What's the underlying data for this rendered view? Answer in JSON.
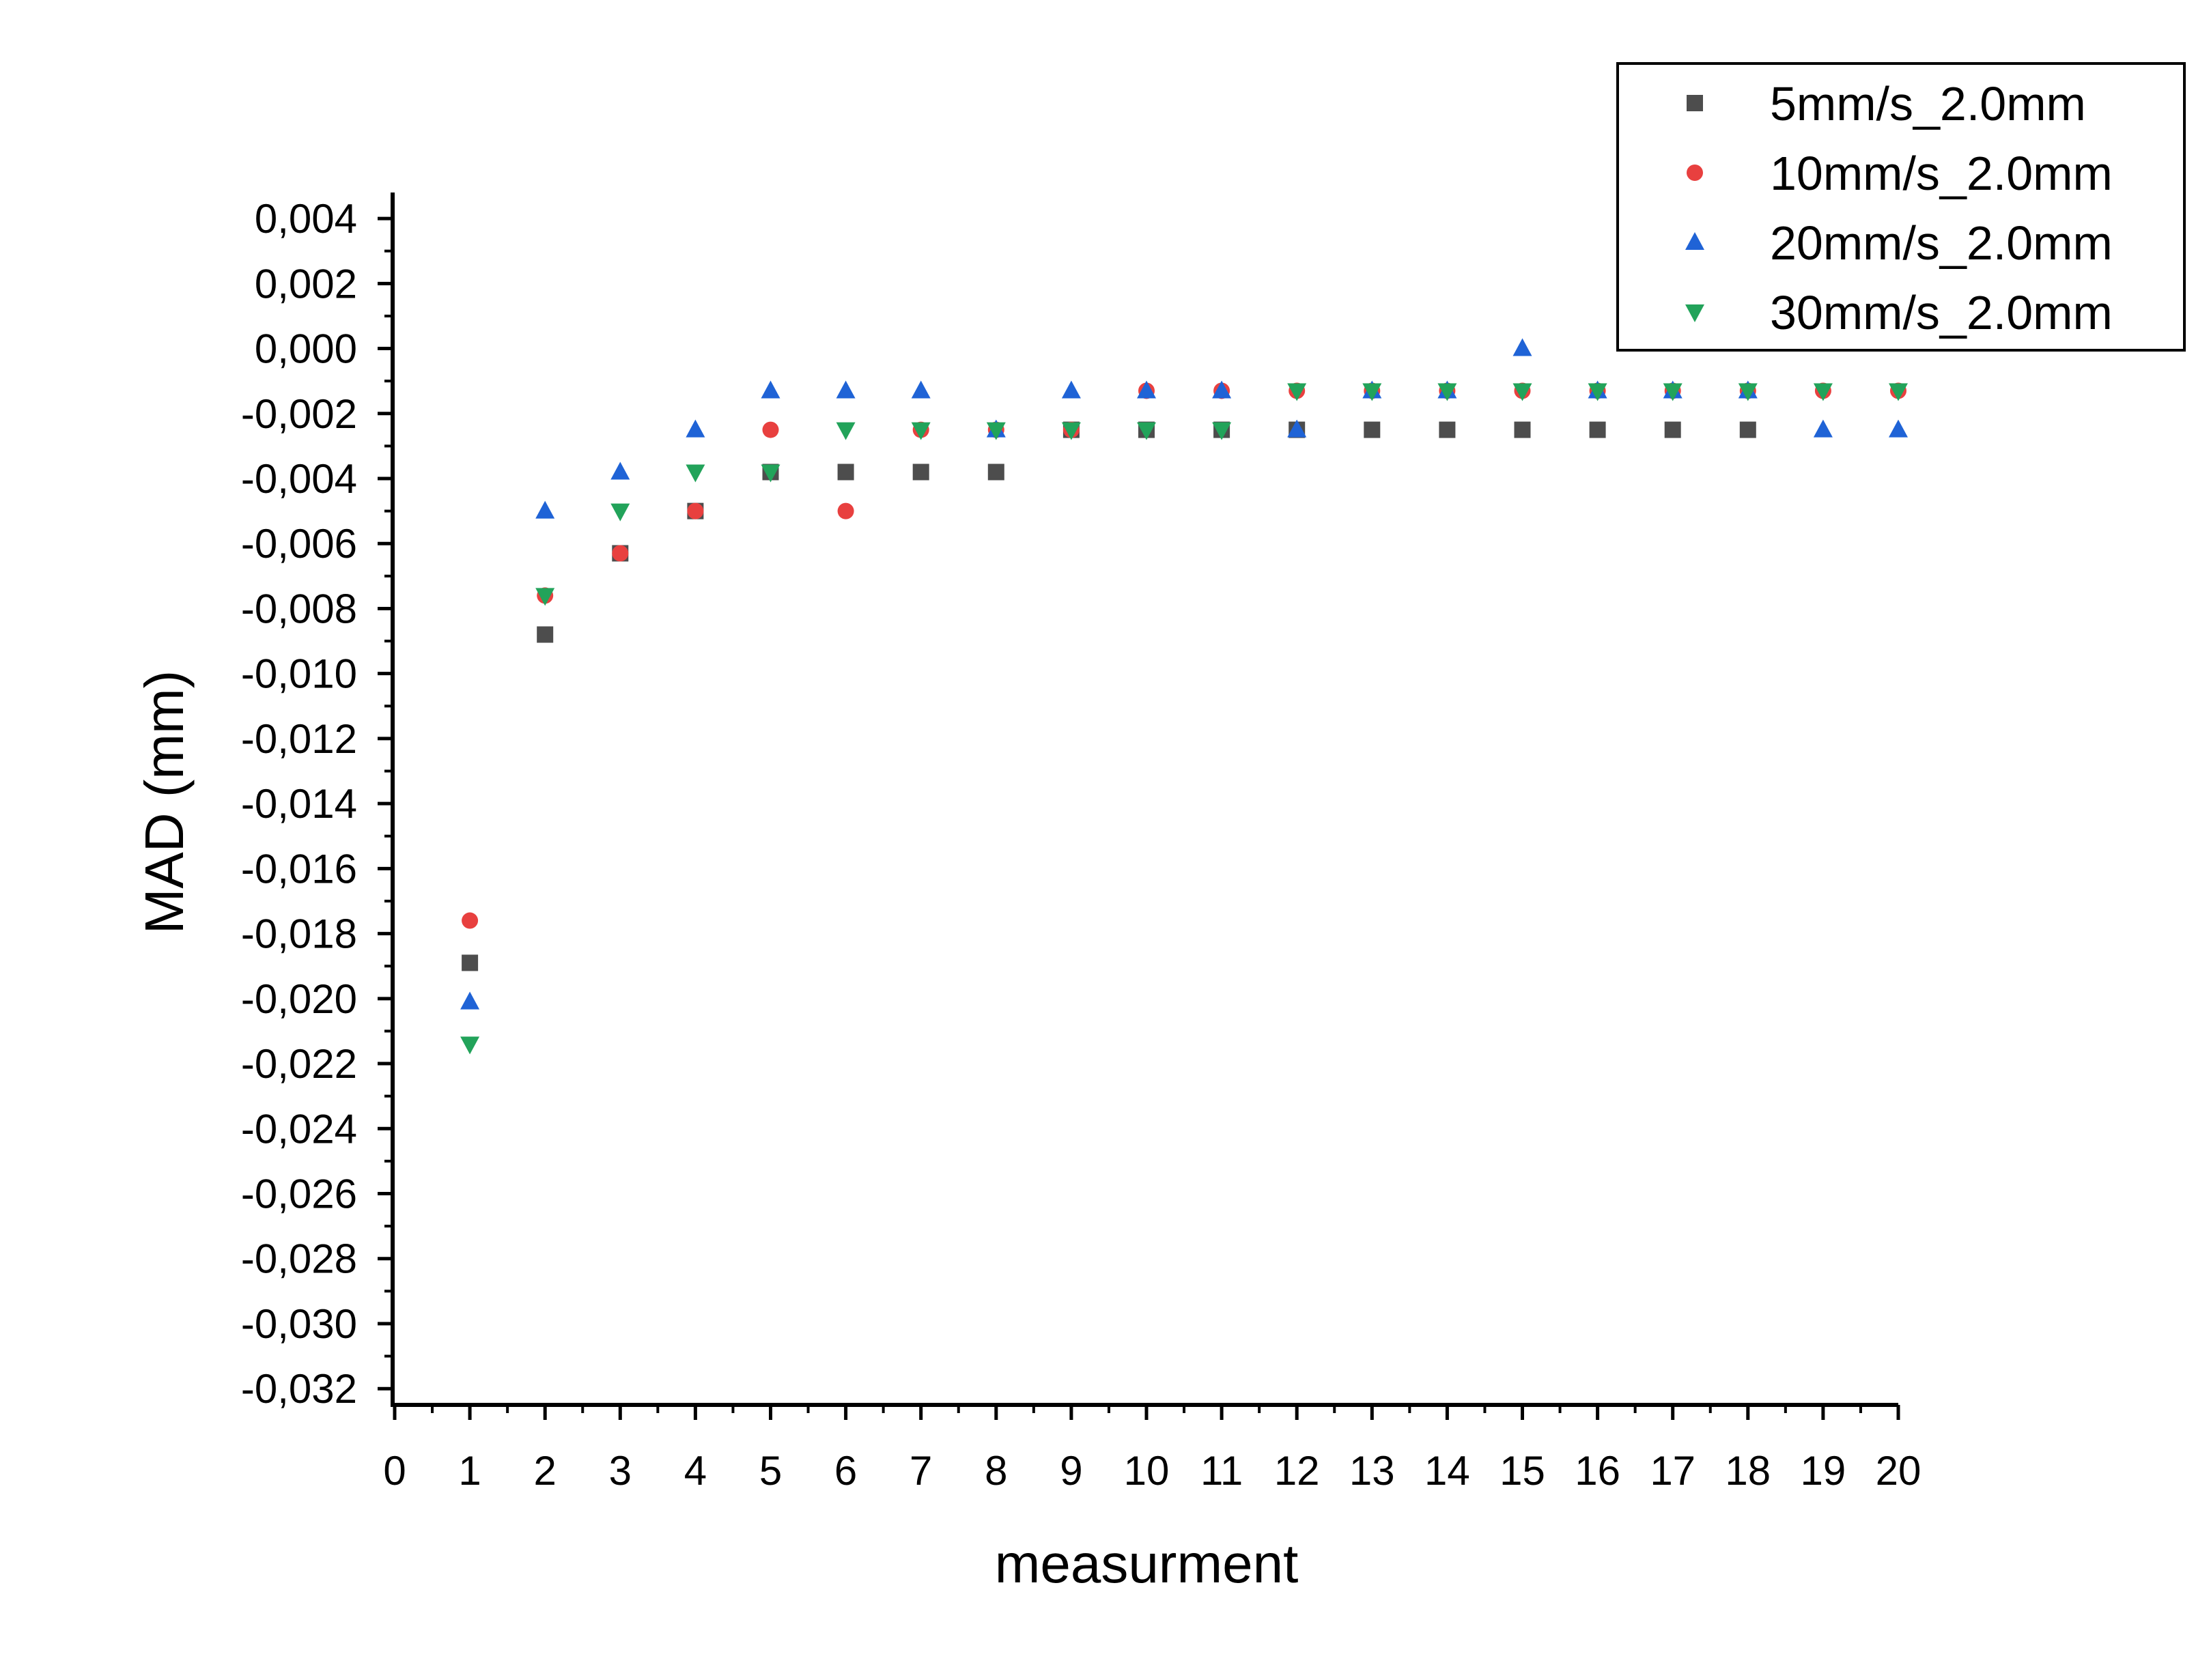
{
  "chart_data": {
    "type": "scatter",
    "title": "",
    "xlabel": "measurment",
    "ylabel": "MAD (mm)",
    "xlim": [
      0,
      20
    ],
    "ylim": [
      -0.0325,
      0.0048
    ],
    "x_ticks": [
      0,
      1,
      2,
      3,
      4,
      5,
      6,
      7,
      8,
      9,
      10,
      11,
      12,
      13,
      14,
      15,
      16,
      17,
      18,
      19,
      20
    ],
    "x_tick_labels": [
      "0",
      "1",
      "2",
      "3",
      "4",
      "5",
      "6",
      "7",
      "8",
      "9",
      "10",
      "11",
      "12",
      "13",
      "14",
      "15",
      "16",
      "17",
      "18",
      "19",
      "20"
    ],
    "y_ticks": [
      0.004,
      0.002,
      0.0,
      -0.002,
      -0.004,
      -0.006,
      -0.008,
      -0.01,
      -0.012,
      -0.014,
      -0.016,
      -0.018,
      -0.02,
      -0.022,
      -0.024,
      -0.026,
      -0.028,
      -0.03,
      -0.032
    ],
    "y_tick_labels": [
      "0,004",
      "0,002",
      "0,000",
      "-0,002",
      "-0,004",
      "-0,006",
      "-0,008",
      "-0,010",
      "-0,012",
      "-0,014",
      "-0,016",
      "-0,018",
      "-0,020",
      "-0,022",
      "-0,024",
      "-0,026",
      "-0,028",
      "-0,030",
      "-0,032"
    ],
    "grid": false,
    "legend_position": "top-right",
    "series": [
      {
        "name": "5mm/s_2.0mm",
        "marker": "square",
        "color": "#4d4d4d",
        "x": [
          1,
          2,
          3,
          4,
          5,
          6,
          7,
          8,
          9,
          10,
          11,
          12,
          13,
          14,
          15,
          16,
          17,
          18
        ],
        "y": [
          -0.0189,
          -0.0088,
          -0.0063,
          -0.005,
          -0.0038,
          -0.0038,
          -0.0038,
          -0.0038,
          -0.0025,
          -0.0025,
          -0.0025,
          -0.0025,
          -0.0025,
          -0.0025,
          -0.0025,
          -0.0025,
          -0.0025,
          -0.0025
        ]
      },
      {
        "name": "10mm/s_2.0mm",
        "marker": "circle",
        "color": "#e8403f",
        "x": [
          1,
          2,
          3,
          4,
          5,
          6,
          7,
          8,
          9,
          10,
          11,
          12,
          13,
          14,
          15,
          16,
          17,
          18,
          19,
          20
        ],
        "y": [
          -0.0176,
          -0.0076,
          -0.0063,
          -0.005,
          -0.0025,
          -0.005,
          -0.0025,
          -0.0025,
          -0.0025,
          -0.0013,
          -0.0013,
          -0.0013,
          -0.0013,
          -0.0013,
          -0.0013,
          -0.0013,
          -0.0013,
          -0.0013,
          -0.0013,
          -0.0013
        ]
      },
      {
        "name": "20mm/s_2.0mm",
        "marker": "triangle-up",
        "color": "#1f63d6",
        "x": [
          1,
          2,
          3,
          4,
          5,
          6,
          7,
          8,
          9,
          10,
          11,
          12,
          13,
          14,
          15,
          16,
          17,
          18,
          19,
          20
        ],
        "y": [
          -0.0201,
          -0.005,
          -0.0038,
          -0.0025,
          -0.0013,
          -0.0013,
          -0.0013,
          -0.0025,
          -0.0013,
          -0.0013,
          -0.0013,
          -0.0025,
          -0.0013,
          -0.0013,
          0.0,
          -0.0013,
          -0.0013,
          -0.0013,
          -0.0025,
          -0.0025
        ]
      },
      {
        "name": "30mm/s_2.0mm",
        "marker": "triangle-down",
        "color": "#22a35a",
        "x": [
          1,
          2,
          3,
          4,
          5,
          6,
          7,
          8,
          9,
          10,
          11,
          12,
          13,
          14,
          15,
          16,
          17,
          18,
          19,
          20
        ],
        "y": [
          -0.0214,
          -0.0076,
          -0.005,
          -0.0038,
          -0.0038,
          -0.0025,
          -0.0025,
          -0.0025,
          -0.0025,
          -0.0025,
          -0.0025,
          -0.0013,
          -0.0013,
          -0.0013,
          -0.0013,
          -0.0013,
          -0.0013,
          -0.0013,
          -0.0013,
          -0.0013
        ]
      }
    ]
  }
}
